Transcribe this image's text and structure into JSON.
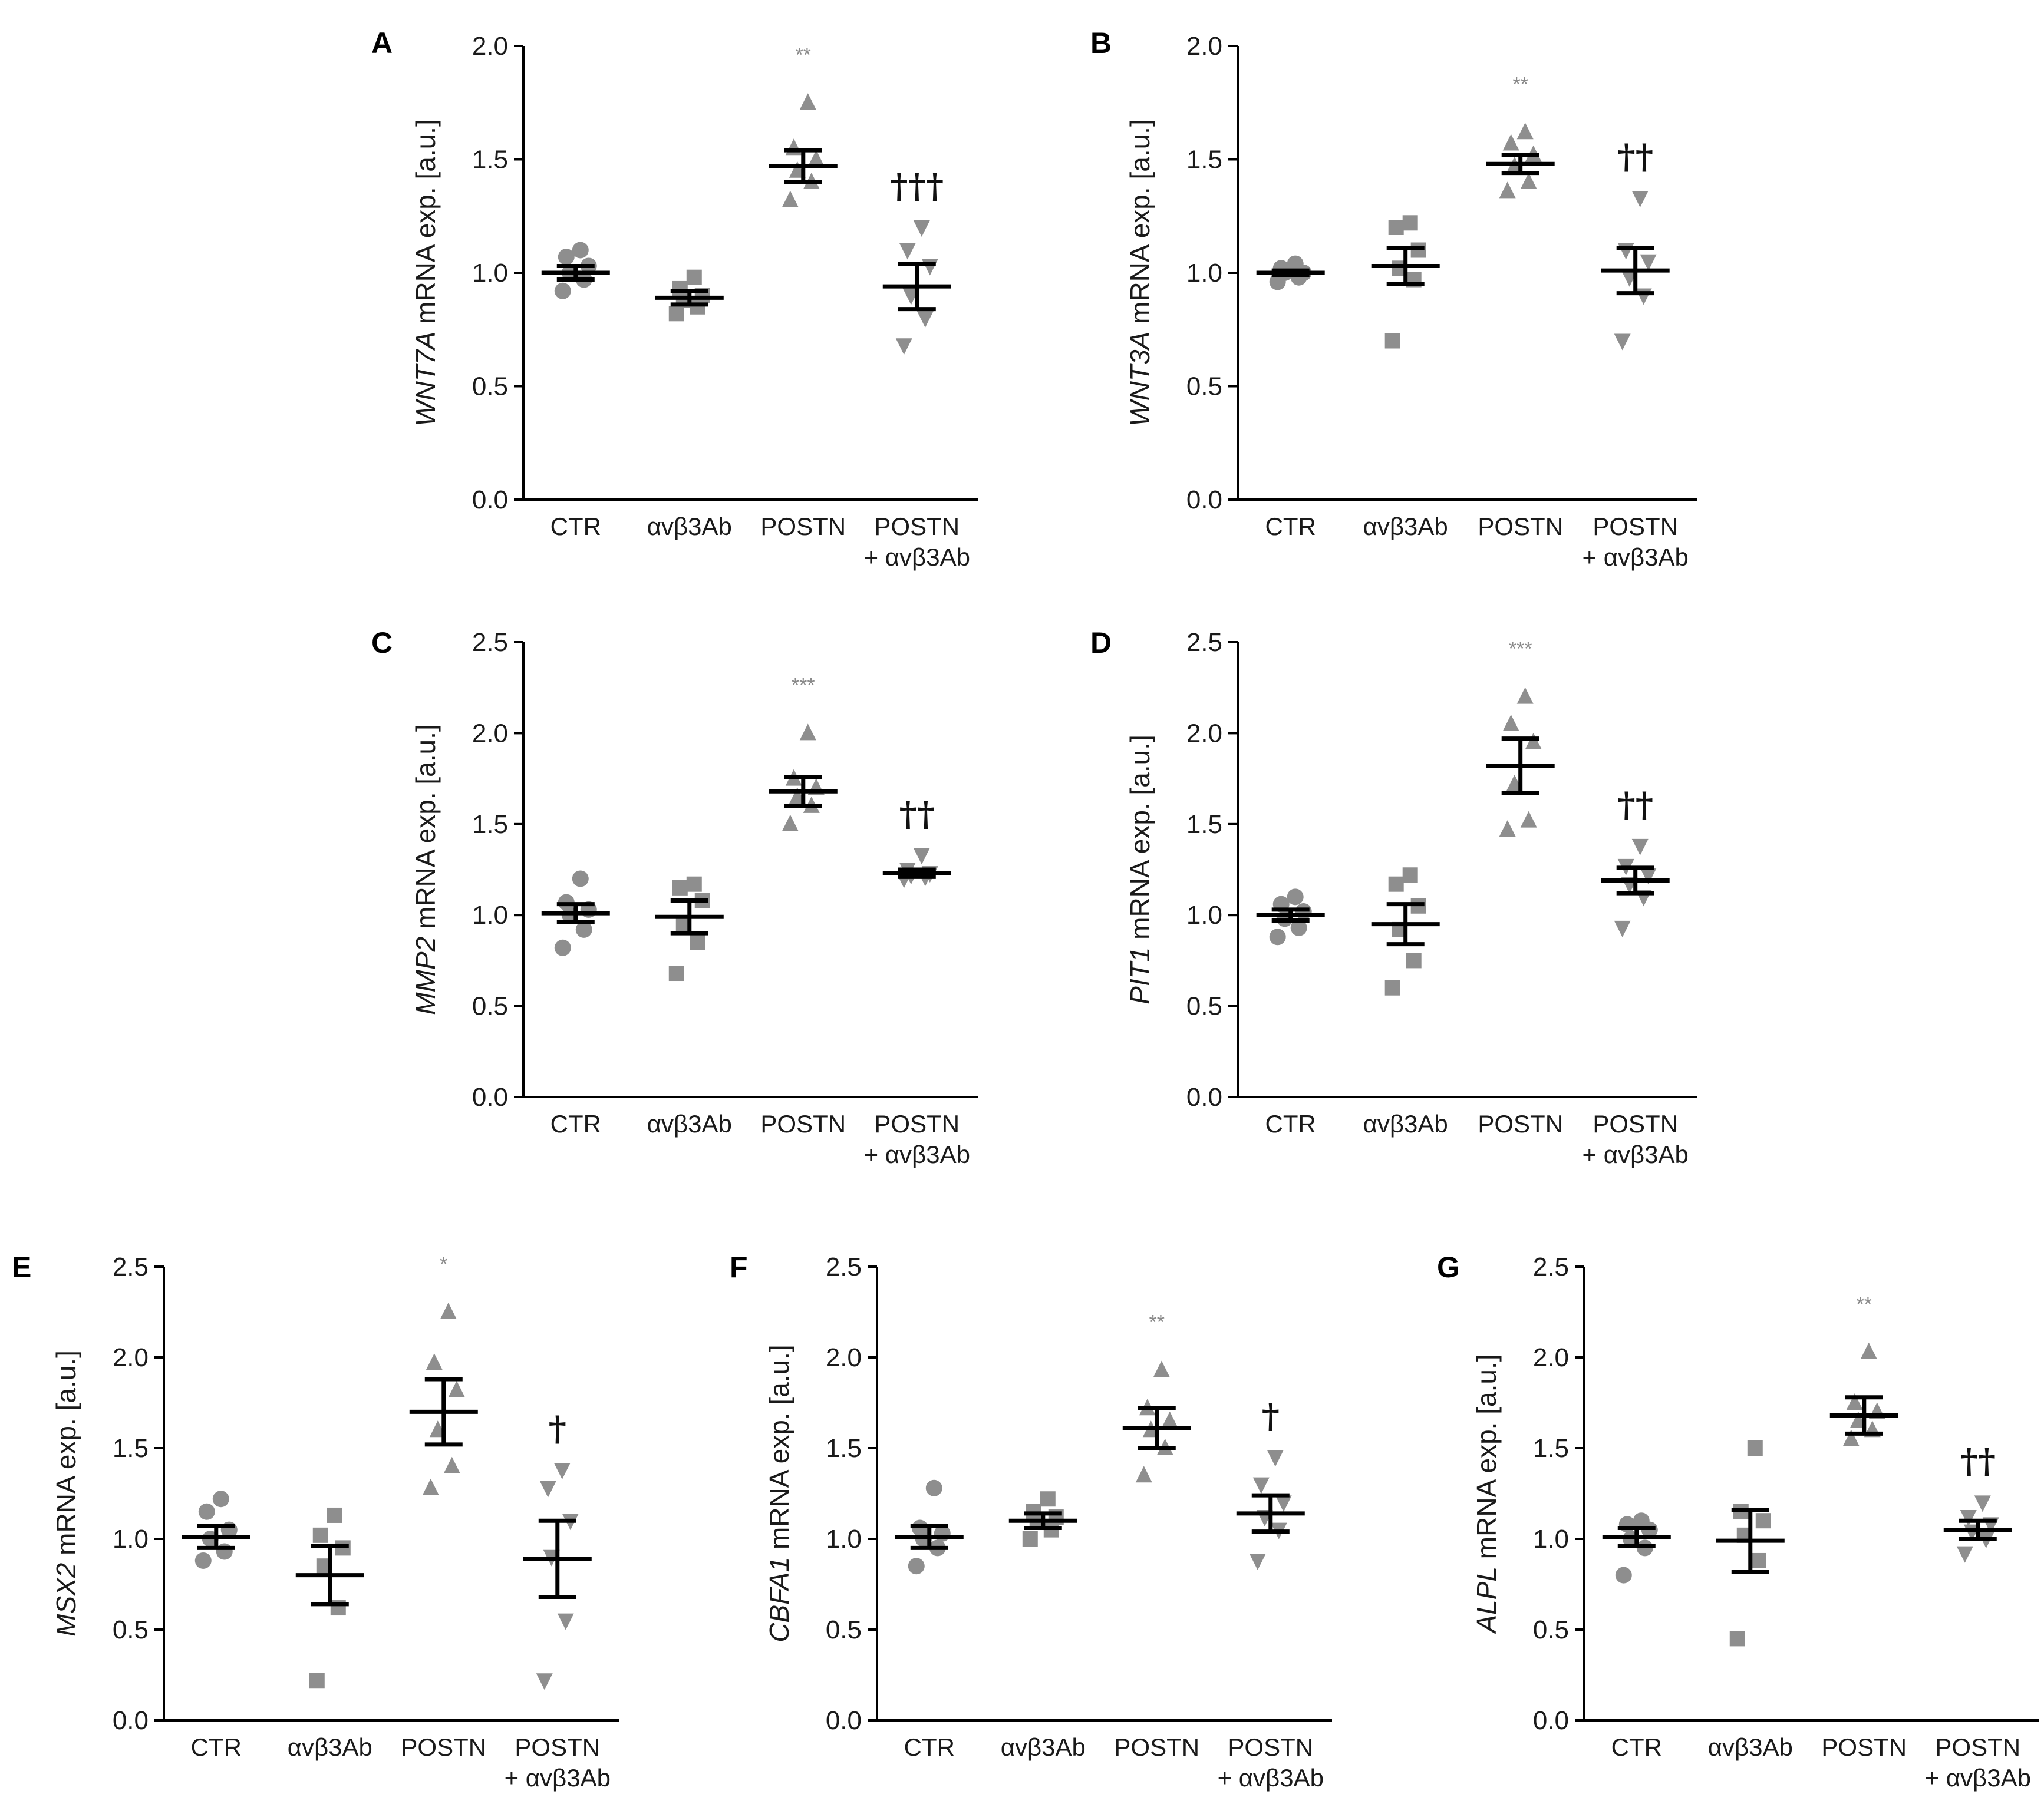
{
  "figure": {
    "categories": [
      "CTR",
      "αvβ3Ab",
      "POSTN",
      "POSTN",
      "+ αvβ3Ab"
    ],
    "category_note": "4th group label spans two lines: 'POSTN' / '+ αvβ3Ab'",
    "colors": {
      "points": "#8e8e8e",
      "axes": "#000000",
      "stars": "#8a8a8a",
      "daggers": "#111111"
    }
  },
  "chart_data": [
    {
      "panel": "A",
      "type": "scatter",
      "ylabel_gene": "WNT7A",
      "ylabel_rest": " mRNA exp. [a.u.]",
      "ylim": [
        0,
        2.0
      ],
      "yticks": [
        "0.0",
        "0.5",
        "1.0",
        "1.5",
        "2.0"
      ],
      "tick_values": [
        0,
        0.5,
        1.0,
        1.5,
        2.0
      ],
      "groups": [
        {
          "name": "CTR",
          "marker": "circle",
          "points": [
            0.92,
            0.97,
            1.0,
            1.03,
            1.07,
            1.1
          ],
          "mean": 1.0,
          "sem": 0.03
        },
        {
          "name": "αvβ3Ab",
          "marker": "square",
          "points": [
            0.82,
            0.85,
            0.88,
            0.9,
            0.93,
            0.98
          ],
          "mean": 0.89,
          "sem": 0.03
        },
        {
          "name": "POSTN",
          "marker": "triangle-up",
          "points": [
            1.32,
            1.4,
            1.45,
            1.5,
            1.55,
            1.75
          ],
          "mean": 1.47,
          "sem": 0.07
        },
        {
          "name": "POSTN + αvβ3Ab",
          "marker": "triangle-down",
          "points": [
            0.68,
            0.8,
            0.9,
            1.03,
            1.1,
            1.2
          ],
          "mean": 0.94,
          "sem": 0.1
        }
      ],
      "sig_star": "**",
      "sig_dagger": "†††"
    },
    {
      "panel": "B",
      "type": "scatter",
      "ylabel_gene": "WNT3A",
      "ylabel_rest": " mRNA exp. [a.u.]",
      "ylim": [
        0,
        2.0
      ],
      "yticks": [
        "0.0",
        "0.5",
        "1.0",
        "1.5",
        "2.0"
      ],
      "tick_values": [
        0,
        0.5,
        1.0,
        1.5,
        2.0
      ],
      "groups": [
        {
          "name": "CTR",
          "marker": "circle",
          "points": [
            0.96,
            0.98,
            1.0,
            1.0,
            1.02,
            1.04
          ],
          "mean": 1.0,
          "sem": 0.01
        },
        {
          "name": "αvβ3Ab",
          "marker": "square",
          "points": [
            0.7,
            0.97,
            1.02,
            1.1,
            1.2,
            1.22
          ],
          "mean": 1.03,
          "sem": 0.08
        },
        {
          "name": "POSTN",
          "marker": "triangle-up",
          "points": [
            1.36,
            1.4,
            1.47,
            1.52,
            1.57,
            1.62
          ],
          "mean": 1.48,
          "sem": 0.04
        },
        {
          "name": "POSTN + αvβ3Ab",
          "marker": "triangle-down",
          "points": [
            0.7,
            0.9,
            0.98,
            1.05,
            1.1,
            1.33
          ],
          "mean": 1.01,
          "sem": 0.1
        }
      ],
      "sig_star": "**",
      "sig_dagger": "††"
    },
    {
      "panel": "C",
      "type": "scatter",
      "ylabel_gene": "MMP2",
      "ylabel_rest": " mRNA exp. [a.u.]",
      "ylim": [
        0,
        2.5
      ],
      "yticks": [
        "0.0",
        "0.5",
        "1.0",
        "1.5",
        "2.0",
        "2.5"
      ],
      "tick_values": [
        0,
        0.5,
        1.0,
        1.5,
        2.0,
        2.5
      ],
      "groups": [
        {
          "name": "CTR",
          "marker": "circle",
          "points": [
            0.82,
            0.92,
            1.0,
            1.03,
            1.07,
            1.2
          ],
          "mean": 1.01,
          "sem": 0.05
        },
        {
          "name": "αvβ3Ab",
          "marker": "square",
          "points": [
            0.68,
            0.85,
            0.95,
            1.08,
            1.15,
            1.17
          ],
          "mean": 0.99,
          "sem": 0.09
        },
        {
          "name": "POSTN",
          "marker": "triangle-up",
          "points": [
            1.5,
            1.6,
            1.65,
            1.7,
            1.75,
            2.0
          ],
          "mean": 1.68,
          "sem": 0.08
        },
        {
          "name": "POSTN + αvβ3Ab",
          "marker": "triangle-down",
          "points": [
            1.2,
            1.21,
            1.22,
            1.23,
            1.25,
            1.33
          ],
          "mean": 1.23,
          "sem": 0.02
        }
      ],
      "sig_star": "***",
      "sig_dagger": "††"
    },
    {
      "panel": "D",
      "type": "scatter",
      "ylabel_gene": "PIT1",
      "ylabel_rest": " mRNA exp. [a.u.]",
      "ylim": [
        0,
        2.5
      ],
      "yticks": [
        "0.0",
        "0.5",
        "1.0",
        "1.5",
        "2.0",
        "2.5"
      ],
      "tick_values": [
        0,
        0.5,
        1.0,
        1.5,
        2.0,
        2.5
      ],
      "groups": [
        {
          "name": "CTR",
          "marker": "circle",
          "points": [
            0.88,
            0.93,
            0.98,
            1.02,
            1.06,
            1.1
          ],
          "mean": 1.0,
          "sem": 0.03
        },
        {
          "name": "αvβ3Ab",
          "marker": "square",
          "points": [
            0.6,
            0.75,
            0.92,
            1.05,
            1.17,
            1.22
          ],
          "mean": 0.95,
          "sem": 0.11
        },
        {
          "name": "POSTN",
          "marker": "triangle-up",
          "points": [
            1.47,
            1.52,
            1.72,
            1.95,
            2.05,
            2.2
          ],
          "mean": 1.82,
          "sem": 0.15
        },
        {
          "name": "POSTN + αvβ3Ab",
          "marker": "triangle-down",
          "points": [
            0.93,
            1.1,
            1.17,
            1.22,
            1.27,
            1.38
          ],
          "mean": 1.19,
          "sem": 0.07
        }
      ],
      "sig_star": "***",
      "sig_dagger": "††"
    },
    {
      "panel": "E",
      "type": "scatter",
      "ylabel_gene": "MSX2",
      "ylabel_rest": " mRNA exp. [a.u.]",
      "ylim": [
        0,
        2.5
      ],
      "yticks": [
        "0.0",
        "0.5",
        "1.0",
        "1.5",
        "2.0",
        "2.5"
      ],
      "tick_values": [
        0,
        0.5,
        1.0,
        1.5,
        2.0,
        2.5
      ],
      "groups": [
        {
          "name": "CTR",
          "marker": "circle",
          "points": [
            0.88,
            0.93,
            1.0,
            1.05,
            1.15,
            1.22
          ],
          "mean": 1.01,
          "sem": 0.06
        },
        {
          "name": "αvβ3Ab",
          "marker": "square",
          "points": [
            0.22,
            0.62,
            0.85,
            0.95,
            1.02,
            1.13
          ],
          "mean": 0.8,
          "sem": 0.16
        },
        {
          "name": "POSTN",
          "marker": "triangle-up",
          "points": [
            1.28,
            1.4,
            1.6,
            1.82,
            1.97,
            2.25
          ],
          "mean": 1.7,
          "sem": 0.18
        },
        {
          "name": "POSTN + αvβ3Ab",
          "marker": "triangle-down",
          "points": [
            0.22,
            0.55,
            0.9,
            1.1,
            1.28,
            1.38
          ],
          "mean": 0.89,
          "sem": 0.21
        }
      ],
      "sig_star": "*",
      "sig_dagger": "†"
    },
    {
      "panel": "F",
      "type": "scatter",
      "ylabel_gene": "CBFA1",
      "ylabel_rest": " mRNA exp. [a.u.]",
      "ylim": [
        0,
        2.5
      ],
      "yticks": [
        "0.0",
        "0.5",
        "1.0",
        "1.5",
        "2.0",
        "2.5"
      ],
      "tick_values": [
        0,
        0.5,
        1.0,
        1.5,
        2.0,
        2.5
      ],
      "groups": [
        {
          "name": "CTR",
          "marker": "circle",
          "points": [
            0.85,
            0.95,
            1.0,
            1.03,
            1.06,
            1.28
          ],
          "mean": 1.01,
          "sem": 0.06
        },
        {
          "name": "αvβ3Ab",
          "marker": "square",
          "points": [
            1.0,
            1.05,
            1.1,
            1.12,
            1.15,
            1.22
          ],
          "mean": 1.1,
          "sem": 0.04
        },
        {
          "name": "POSTN",
          "marker": "triangle-up",
          "points": [
            1.35,
            1.5,
            1.6,
            1.65,
            1.72,
            1.93
          ],
          "mean": 1.61,
          "sem": 0.11
        },
        {
          "name": "POSTN + αvβ3Ab",
          "marker": "triangle-down",
          "points": [
            0.88,
            1.05,
            1.12,
            1.2,
            1.3,
            1.45
          ],
          "mean": 1.14,
          "sem": 0.1
        }
      ],
      "sig_star": "**",
      "sig_dagger": "†"
    },
    {
      "panel": "G",
      "type": "scatter",
      "ylabel_gene": "ALPL",
      "ylabel_rest": " mRNA exp. [a.u.]",
      "ylim": [
        0,
        2.5
      ],
      "yticks": [
        "0.0",
        "0.5",
        "1.0",
        "1.5",
        "2.0",
        "2.5"
      ],
      "tick_values": [
        0,
        0.5,
        1.0,
        1.5,
        2.0,
        2.5
      ],
      "groups": [
        {
          "name": "CTR",
          "marker": "circle",
          "points": [
            0.8,
            0.95,
            1.0,
            1.05,
            1.08,
            1.1
          ],
          "mean": 1.01,
          "sem": 0.05
        },
        {
          "name": "αvβ3Ab",
          "marker": "square",
          "points": [
            0.45,
            0.88,
            1.02,
            1.1,
            1.15,
            1.5
          ],
          "mean": 0.99,
          "sem": 0.17
        },
        {
          "name": "POSTN",
          "marker": "triangle-up",
          "points": [
            1.55,
            1.6,
            1.65,
            1.7,
            1.75,
            2.03
          ],
          "mean": 1.68,
          "sem": 0.1
        },
        {
          "name": "POSTN + αvβ3Ab",
          "marker": "triangle-down",
          "points": [
            0.92,
            1.0,
            1.04,
            1.08,
            1.12,
            1.2
          ],
          "mean": 1.05,
          "sem": 0.05
        }
      ],
      "sig_star": "**",
      "sig_dagger": "††"
    }
  ]
}
